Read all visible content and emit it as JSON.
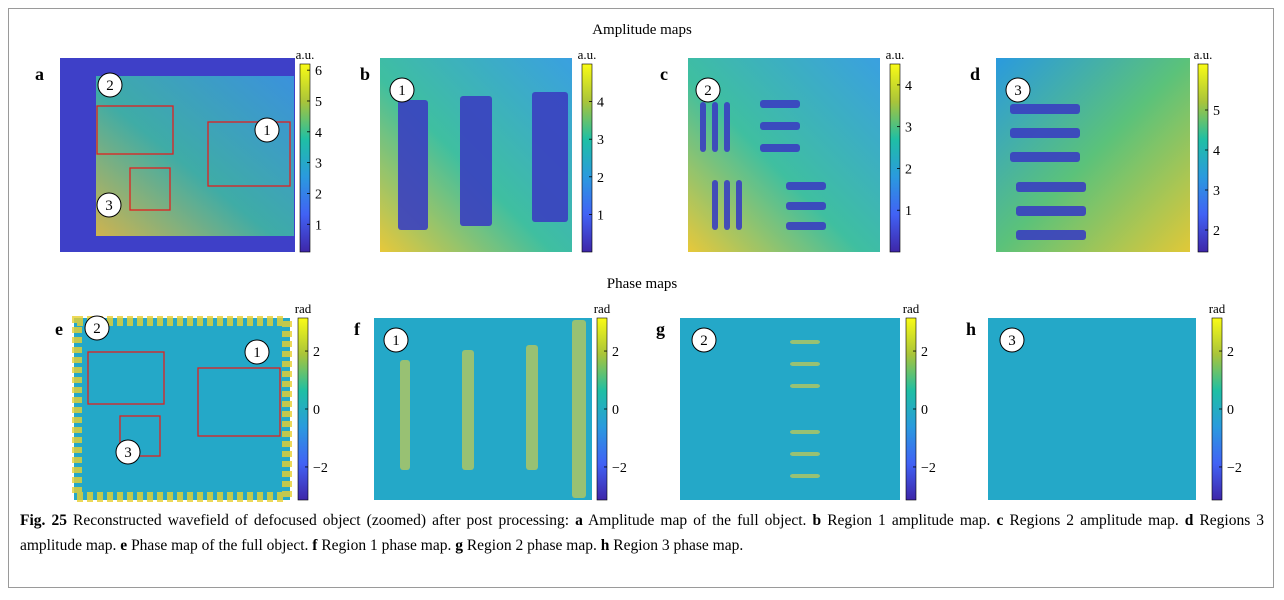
{
  "sections": [
    "Amplitude maps",
    "Phase maps"
  ],
  "panels": [
    {
      "letter": "a",
      "unit": "a.u.",
      "kind": "amplitude",
      "clim": [
        0.1,
        6.2
      ],
      "ticks": [
        1,
        2,
        3,
        4,
        5,
        6
      ],
      "markers": [
        "2",
        "1",
        "3"
      ]
    },
    {
      "letter": "b",
      "unit": "a.u.",
      "kind": "amplitude",
      "clim": [
        0,
        5
      ],
      "ticks": [
        1,
        2,
        3,
        4
      ],
      "markers": [
        "1"
      ]
    },
    {
      "letter": "c",
      "unit": "a.u.",
      "kind": "amplitude",
      "clim": [
        0,
        4.5
      ],
      "ticks": [
        1,
        2,
        3,
        4
      ],
      "markers": [
        "2"
      ]
    },
    {
      "letter": "d",
      "unit": "a.u.",
      "kind": "amplitude",
      "clim": [
        1.45,
        6.15
      ],
      "ticks": [
        2,
        3,
        4,
        5
      ],
      "markers": [
        "3"
      ]
    },
    {
      "letter": "e",
      "unit": "rad",
      "kind": "phase",
      "clim": [
        -3.14,
        3.14
      ],
      "ticks": [
        {
          "value": -2,
          "label": "−2"
        },
        0,
        2
      ],
      "markers": [
        "2",
        "1",
        "3"
      ]
    },
    {
      "letter": "f",
      "unit": "rad",
      "kind": "phase",
      "clim": [
        -3.14,
        3.14
      ],
      "ticks": [
        {
          "value": -2,
          "label": "−2"
        },
        0,
        2
      ],
      "markers": [
        "1"
      ]
    },
    {
      "letter": "g",
      "unit": "rad",
      "kind": "phase",
      "clim": [
        -3.14,
        3.14
      ],
      "ticks": [
        {
          "value": -2,
          "label": "−2"
        },
        0,
        2
      ],
      "markers": [
        "2"
      ]
    },
    {
      "letter": "h",
      "unit": "rad",
      "kind": "phase",
      "clim": [
        -3.14,
        3.14
      ],
      "ticks": [
        {
          "value": -2,
          "label": "−2"
        },
        0,
        2
      ],
      "markers": [
        "3"
      ]
    }
  ],
  "caption": {
    "label": "Fig. 25",
    "intro": "Reconstructed wavefield of defocused object (zoomed) after post processing:",
    "items": [
      {
        "letter": "a",
        "text": "Amplitude map of the full object."
      },
      {
        "letter": "b",
        "text": "Region 1 amplitude map."
      },
      {
        "letter": "c",
        "text": "Regions 2 amplitude map."
      },
      {
        "letter": "d",
        "text": "Regions 3 amplitude map."
      },
      {
        "letter": "e",
        "text": "Phase map of the full object."
      },
      {
        "letter": "f",
        "text": "Region 1 phase map."
      },
      {
        "letter": "g",
        "text": "Region 2 phase map."
      },
      {
        "letter": "h",
        "text": "Region 3 phase map."
      }
    ]
  }
}
